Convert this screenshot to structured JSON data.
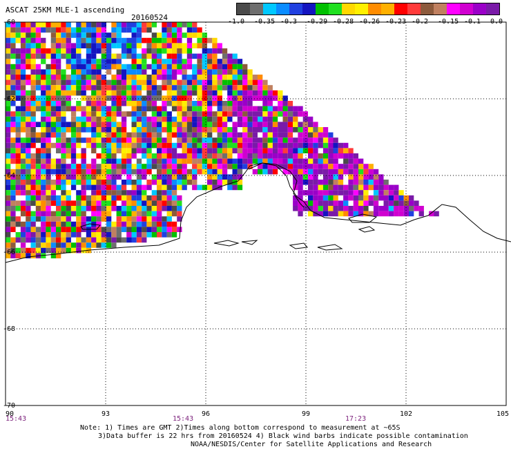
{
  "header": {
    "title": "ASCAT 25KM MLE-1 ascending",
    "date": "20160524"
  },
  "colorbar": {
    "colors": [
      "#4a4a4a",
      "#6e6e6e",
      "#00c8ff",
      "#0a8cff",
      "#2040e0",
      "#1414c0",
      "#00c000",
      "#20e020",
      "#ffd800",
      "#fff000",
      "#ff8c00",
      "#ffb000",
      "#ff0000",
      "#ff3a3a",
      "#8c5a3c",
      "#c08060",
      "#ff00ff",
      "#d000d0",
      "#9a00c8",
      "#7a1aa8"
    ],
    "labels": [
      "-1.0",
      "-0.35",
      "-0.3",
      "-0.29",
      "-0.28",
      "-0.26",
      "-0.23",
      "-0.2",
      "-0.15",
      "-0.1",
      "0.0"
    ]
  },
  "axes": {
    "lon_labels": [
      "90",
      "93",
      "96",
      "99",
      "102",
      "105"
    ],
    "lat_labels": [
      "-60",
      "-62",
      "-64",
      "-66",
      "-68",
      "-70"
    ],
    "lon_range": [
      90,
      105
    ],
    "lat_range": [
      -70,
      -60
    ]
  },
  "times": [
    "15:43",
    "15:43",
    "17:23"
  ],
  "notes": [
    "Note: 1) Times are GMT 2)Times along bottom correspond to measurement at ~65S",
    "3)Data buffer is 22 hrs from 20160524 4) Black wind barbs indicate possible contamination",
    "NOAA/NESDIS/Center for Satellite Applications and Research"
  ]
}
